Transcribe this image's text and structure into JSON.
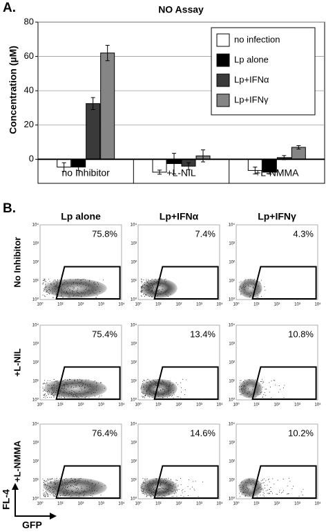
{
  "chart_data": {
    "type": "bar",
    "panel_label": "A.",
    "title": "NO Assay",
    "y_label": "Concentration (µM)",
    "categories": [
      "no Inhibitor",
      "+L-NIL",
      "+L-NMMA"
    ],
    "series": [
      {
        "name": "no infection",
        "color": "#ffffff",
        "values": [
          -4.5,
          -7.5,
          -6.5
        ],
        "errors": [
          2.5,
          1.2,
          2
        ]
      },
      {
        "name": "Lp alone",
        "color": "#000000",
        "values": [
          -4.5,
          -2.5,
          -7.5
        ],
        "errors": [
          2,
          6,
          1
        ]
      },
      {
        "name": "Lp+IFNα",
        "color": "#3a3a3a",
        "values": [
          32.5,
          -4,
          1
        ],
        "errors": [
          3.5,
          2,
          1.2
        ]
      },
      {
        "name": "Lp+IFNγ",
        "color": "#858585",
        "values": [
          62,
          2,
          7
        ],
        "errors": [
          4.5,
          3.5,
          1
        ]
      }
    ],
    "ylim": [
      -14,
      80
    ],
    "yticks": [
      0,
      20,
      40,
      60,
      80
    ],
    "grid": true,
    "legend": "top-right"
  },
  "panel_b": {
    "label": "B.",
    "columns": [
      "Lp alone",
      "Lp+IFNα",
      "Lp+IFNγ"
    ],
    "rows": [
      "No Inhibitor",
      "+L-NIL",
      "+L-NMMA"
    ],
    "percentages": [
      [
        "75.8%",
        "7.4%",
        "4.3%"
      ],
      [
        "75.4%",
        "13.4%",
        "10.8%"
      ],
      [
        "76.4%",
        "14.6%",
        "10.2%"
      ]
    ],
    "axis_ticks": [
      "10⁰",
      "10¹",
      "10²",
      "10³",
      "10⁴"
    ],
    "y_label": "FL-4",
    "x_label": "GFP"
  }
}
